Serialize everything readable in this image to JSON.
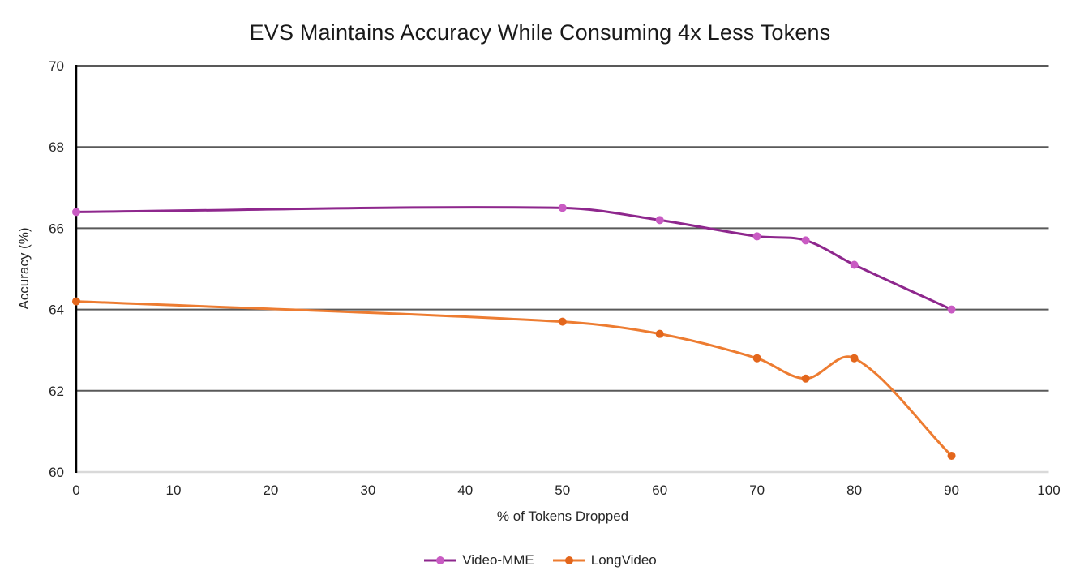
{
  "page": {
    "background": "#FFFFFF"
  },
  "chart_data": {
    "type": "line",
    "title": "EVS Maintains Accuracy While Consuming 4x Less Tokens",
    "xlabel": "% of Tokens Dropped",
    "ylabel": "Accuracy (%)",
    "xlim": [
      0,
      100
    ],
    "ylim": [
      60,
      70
    ],
    "xticks": [
      0,
      10,
      20,
      30,
      40,
      50,
      60,
      70,
      80,
      90,
      100
    ],
    "yticks": [
      60,
      62,
      64,
      66,
      68,
      70
    ],
    "grid": "horizontal",
    "smooth": true,
    "legend_position": "bottom",
    "x": [
      0,
      50,
      60,
      70,
      75,
      80,
      90
    ],
    "series": [
      {
        "name": "Video-MME",
        "values": [
          66.4,
          66.5,
          66.2,
          65.8,
          65.7,
          65.1,
          64.0
        ],
        "line_color": "#8E278D",
        "marker_color": "#C95BC3"
      },
      {
        "name": "LongVideo",
        "values": [
          64.2,
          63.7,
          63.4,
          62.8,
          62.3,
          62.8,
          60.4
        ],
        "line_color": "#ED7C31",
        "marker_color": "#E3661C"
      }
    ]
  },
  "colors": {
    "gridline": "#595959",
    "axis_left": "#000000",
    "axis_bottom": "#D9D9D9",
    "tick_text": "#262626",
    "title_text": "#1A1A1A"
  }
}
